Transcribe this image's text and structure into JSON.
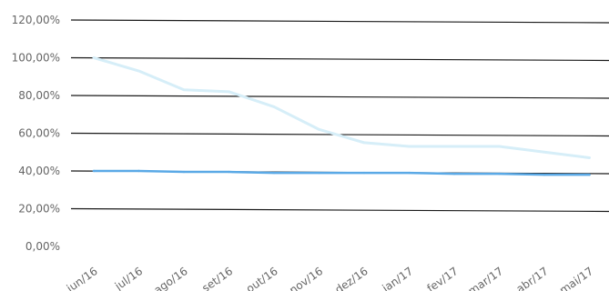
{
  "chart_data": {
    "type": "line",
    "title": "",
    "xlabel": "",
    "ylabel": "",
    "categories": [
      "jun/16",
      "jul/16",
      "ago/16",
      "set/16",
      "out/16",
      "nov/16",
      "dez/16",
      "jan/17",
      "fev/17",
      "mar/17",
      "abr/17",
      "mai/17"
    ],
    "y_ticks": [
      "0,00%",
      "20,00%",
      "40,00%",
      "60,00%",
      "80,00%",
      "100,00%",
      "120,00%"
    ],
    "ylim": [
      0,
      120
    ],
    "grid": true,
    "legend": "none",
    "series": [
      {
        "color": "#d6eef8",
        "values": [
          100,
          93,
          83,
          82,
          74,
          62,
          55,
          53,
          53,
          53,
          50,
          47
        ]
      },
      {
        "color": "#5aa9e6",
        "values": [
          40,
          40,
          39.5,
          39.5,
          39,
          39,
          39,
          39,
          38.5,
          38.5,
          38,
          38
        ]
      }
    ]
  }
}
